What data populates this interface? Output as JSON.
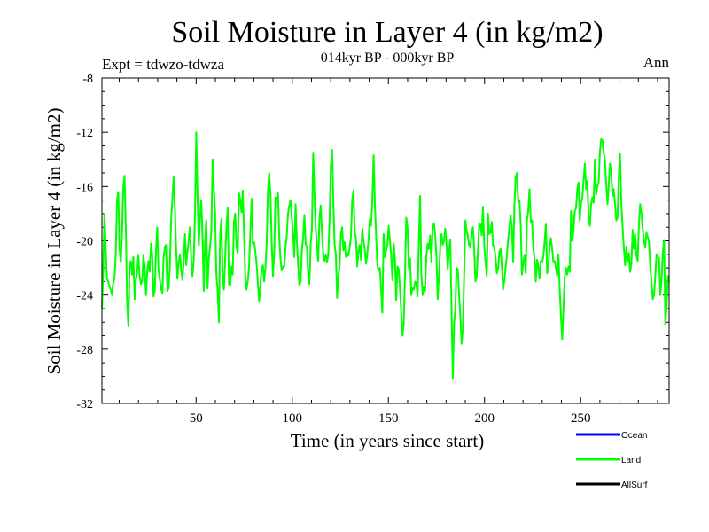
{
  "chart_data": {
    "type": "line",
    "title": "Soil Moisture in Layer 4 (in kg/m2)",
    "subtitle": "014kyr BP - 000kyr BP",
    "experiment": "Expt = tdwzo-tdwza",
    "period": "Ann",
    "xlabel": "Time (in years since start)",
    "ylabel": "Soil Moisture in Layer 4 (in kg/m2)",
    "xlim": [
      1,
      296
    ],
    "ylim": [
      -32,
      -8
    ],
    "xticks": [
      50,
      100,
      150,
      200,
      250
    ],
    "yticks": [
      -32,
      -28,
      -24,
      -20,
      -16,
      -12,
      -8
    ],
    "grid": false,
    "legend_position": "bottom-right",
    "legend": [
      {
        "name": "Ocean",
        "color": "#0000ff"
      },
      {
        "name": "Land",
        "color": "#00ff00"
      },
      {
        "name": "AllSurf",
        "color": "#000000"
      }
    ],
    "series": [
      {
        "name": "Land",
        "color": "#00ff00",
        "x_start": 1,
        "x_step": 1,
        "values": [
          -25.0,
          -22.3,
          -18.0,
          -20.5,
          -22.8,
          -23.0,
          -23.4,
          -23.6,
          -24.0,
          -23.1,
          -22.8,
          -21.0,
          -17.0,
          -16.4,
          -20.6,
          -21.6,
          -19.4,
          -16.0,
          -15.2,
          -19.0,
          -24.5,
          -26.3,
          -22.0,
          -21.5,
          -22.5,
          -21.2,
          -24.3,
          -22.9,
          -22.3,
          -21.1,
          -22.6,
          -23.2,
          -23.0,
          -21.1,
          -21.9,
          -24.0,
          -22.3,
          -21.5,
          -22.3,
          -20.2,
          -21.0,
          -24.1,
          -23.7,
          -20.7,
          -19.0,
          -22.2,
          -22.8,
          -23.5,
          -23.9,
          -21.3,
          -20.5,
          -20.3,
          -23.7,
          -23.5,
          -22.0,
          -18.5,
          -17.0,
          -15.3,
          -17.5,
          -20.5,
          -22.8,
          -21.7,
          -21.0,
          -22.1,
          -22.9,
          -21.6,
          -19.5,
          -21.8,
          -20.8,
          -20.0,
          -19.0,
          -21.3,
          -22.6,
          -21.5,
          -18.0,
          -12.0,
          -16.5,
          -20.4,
          -18.3,
          -17.0,
          -19.7,
          -23.7,
          -20.0,
          -18.5,
          -23.5,
          -21.4,
          -20.4,
          -19.3,
          -14.0,
          -16.0,
          -17.9,
          -22.5,
          -23.7,
          -26.0,
          -19.6,
          -18.4,
          -22.6,
          -23.6,
          -21.3,
          -19.0,
          -17.6,
          -23.2,
          -23.3,
          -21.9,
          -22.5,
          -18.6,
          -18.0,
          -20.5,
          -20.9,
          -16.5,
          -17.0,
          -17.9,
          -16.3,
          -19.4,
          -22.6,
          -23.6,
          -23.0,
          -21.9,
          -19.4,
          -16.9,
          -20.2,
          -20.1,
          -20.8,
          -21.7,
          -23.1,
          -24.5,
          -23.3,
          -22.1,
          -21.8,
          -23.0,
          -22.0,
          -20.2,
          -16.3,
          -15.0,
          -16.5,
          -20.1,
          -22.6,
          -20.8,
          -16.8,
          -17.0,
          -16.5,
          -19.6,
          -21.4,
          -22.2,
          -21.9,
          -21.9,
          -20.5,
          -19.6,
          -18.0,
          -17.4,
          -17.0,
          -18.3,
          -19.6,
          -21.2,
          -17.3,
          -20.0,
          -21.8,
          -23.3,
          -23.0,
          -20.7,
          -19.8,
          -18.1,
          -20.2,
          -20.5,
          -22.5,
          -23.2,
          -20.2,
          -19.1,
          -13.5,
          -16.5,
          -19.0,
          -20.5,
          -21.5,
          -18.3,
          -17.4,
          -19.4,
          -21.0,
          -21.5,
          -21.0,
          -21.6,
          -21.0,
          -18.6,
          -14.5,
          -13.3,
          -17.0,
          -20.3,
          -21.0,
          -24.2,
          -22.6,
          -21.9,
          -19.5,
          -19.0,
          -20.7,
          -20.1,
          -21.2,
          -20.9,
          -21.1,
          -20.5,
          -19.7,
          -17.0,
          -16.3,
          -19.3,
          -19.8,
          -21.9,
          -20.8,
          -20.3,
          -21.4,
          -19.1,
          -20.0,
          -20.6,
          -21.7,
          -21.0,
          -19.9,
          -18.4,
          -18.9,
          -17.0,
          -13.7,
          -17.1,
          -19.6,
          -21.8,
          -22.2,
          -22.0,
          -23.6,
          -25.3,
          -19.5,
          -21.2,
          -20.7,
          -20.3,
          -18.9,
          -20.0,
          -21.1,
          -22.9,
          -20.2,
          -21.3,
          -24.4,
          -21.9,
          -22.1,
          -23.5,
          -25.3,
          -27.0,
          -26.1,
          -22.5,
          -18.3,
          -19.0,
          -22.0,
          -21.3,
          -24.0,
          -23.5,
          -23.6,
          -23.0,
          -23.1,
          -24.1,
          -20.1,
          -16.7,
          -22.5,
          -24.0,
          -23.4,
          -23.7,
          -21.1,
          -20.2,
          -20.6,
          -19.6,
          -21.6,
          -19.0,
          -18.7,
          -19.5,
          -21.2,
          -24.3,
          -22.6,
          -20.5,
          -19.5,
          -20.3,
          -20.0,
          -19.1,
          -20.3,
          -22.1,
          -20.7,
          -19.9,
          -25.0,
          -30.2,
          -26.1,
          -25.1,
          -22.0,
          -22.1,
          -24.0,
          -25.6,
          -27.6,
          -26.5,
          -22.7,
          -18.5,
          -19.3,
          -19.6,
          -20.4,
          -20.5,
          -19.5,
          -19.0,
          -20.6,
          -23.0,
          -22.7,
          -20.7,
          -18.7,
          -18.8,
          -19.6,
          -17.5,
          -20.4,
          -21.6,
          -22.6,
          -18.0,
          -19.5,
          -19.4,
          -18.6,
          -20.4,
          -20.5,
          -21.2,
          -22.4,
          -22.1,
          -20.8,
          -20.6,
          -21.9,
          -23.6,
          -22.9,
          -22.0,
          -21.1,
          -19.9,
          -19.0,
          -18.1,
          -19.1,
          -21.6,
          -17.3,
          -15.3,
          -15.0,
          -17.1,
          -17.0,
          -18.8,
          -22.5,
          -21.6,
          -21.1,
          -22.4,
          -18.5,
          -17.8,
          -16.2,
          -18.6,
          -18.5,
          -20.5,
          -21.3,
          -23.0,
          -21.4,
          -21.8,
          -22.8,
          -21.5,
          -21.6,
          -21.2,
          -20.1,
          -18.8,
          -22.4,
          -22.0,
          -20.5,
          -19.8,
          -20.6,
          -21.6,
          -21.5,
          -22.0,
          -22.6,
          -21.0,
          -23.5,
          -25.6,
          -27.3,
          -25.0,
          -22.7,
          -22.0,
          -22.5,
          -21.9,
          -22.3,
          -17.8,
          -20.0,
          -19.2,
          -17.8,
          -17.6,
          -16.2,
          -15.7,
          -18.5,
          -17.2,
          -16.8,
          -15.5,
          -14.3,
          -16.2,
          -15.6,
          -18.3,
          -18.9,
          -17.3,
          -16.8,
          -17.2,
          -14.0,
          -16.6,
          -16.0,
          -15.7,
          -13.4,
          -12.5,
          -12.6,
          -13.5,
          -14.1,
          -15.8,
          -17.3,
          -15.9,
          -14.3,
          -15.0,
          -16.7,
          -16.2,
          -17.3,
          -18.5,
          -18.3,
          -15.2,
          -13.6,
          -17.2,
          -19.0,
          -20.5,
          -21.8,
          -20.5,
          -21.5,
          -20.9,
          -22.3,
          -21.7,
          -19.2,
          -20.6,
          -19.5,
          -21.1,
          -21.5,
          -18.8,
          -17.3,
          -18.0,
          -19.1,
          -20.0,
          -20.5,
          -19.4,
          -19.7,
          -20.1,
          -21.8,
          -23.0,
          -24.3,
          -24.0,
          -22.6,
          -21.0,
          -21.2,
          -21.3,
          -24.0,
          -22.9,
          -20.8,
          -20.0,
          -26.2,
          -24.8,
          -22.6,
          -23.0
        ]
      }
    ]
  }
}
